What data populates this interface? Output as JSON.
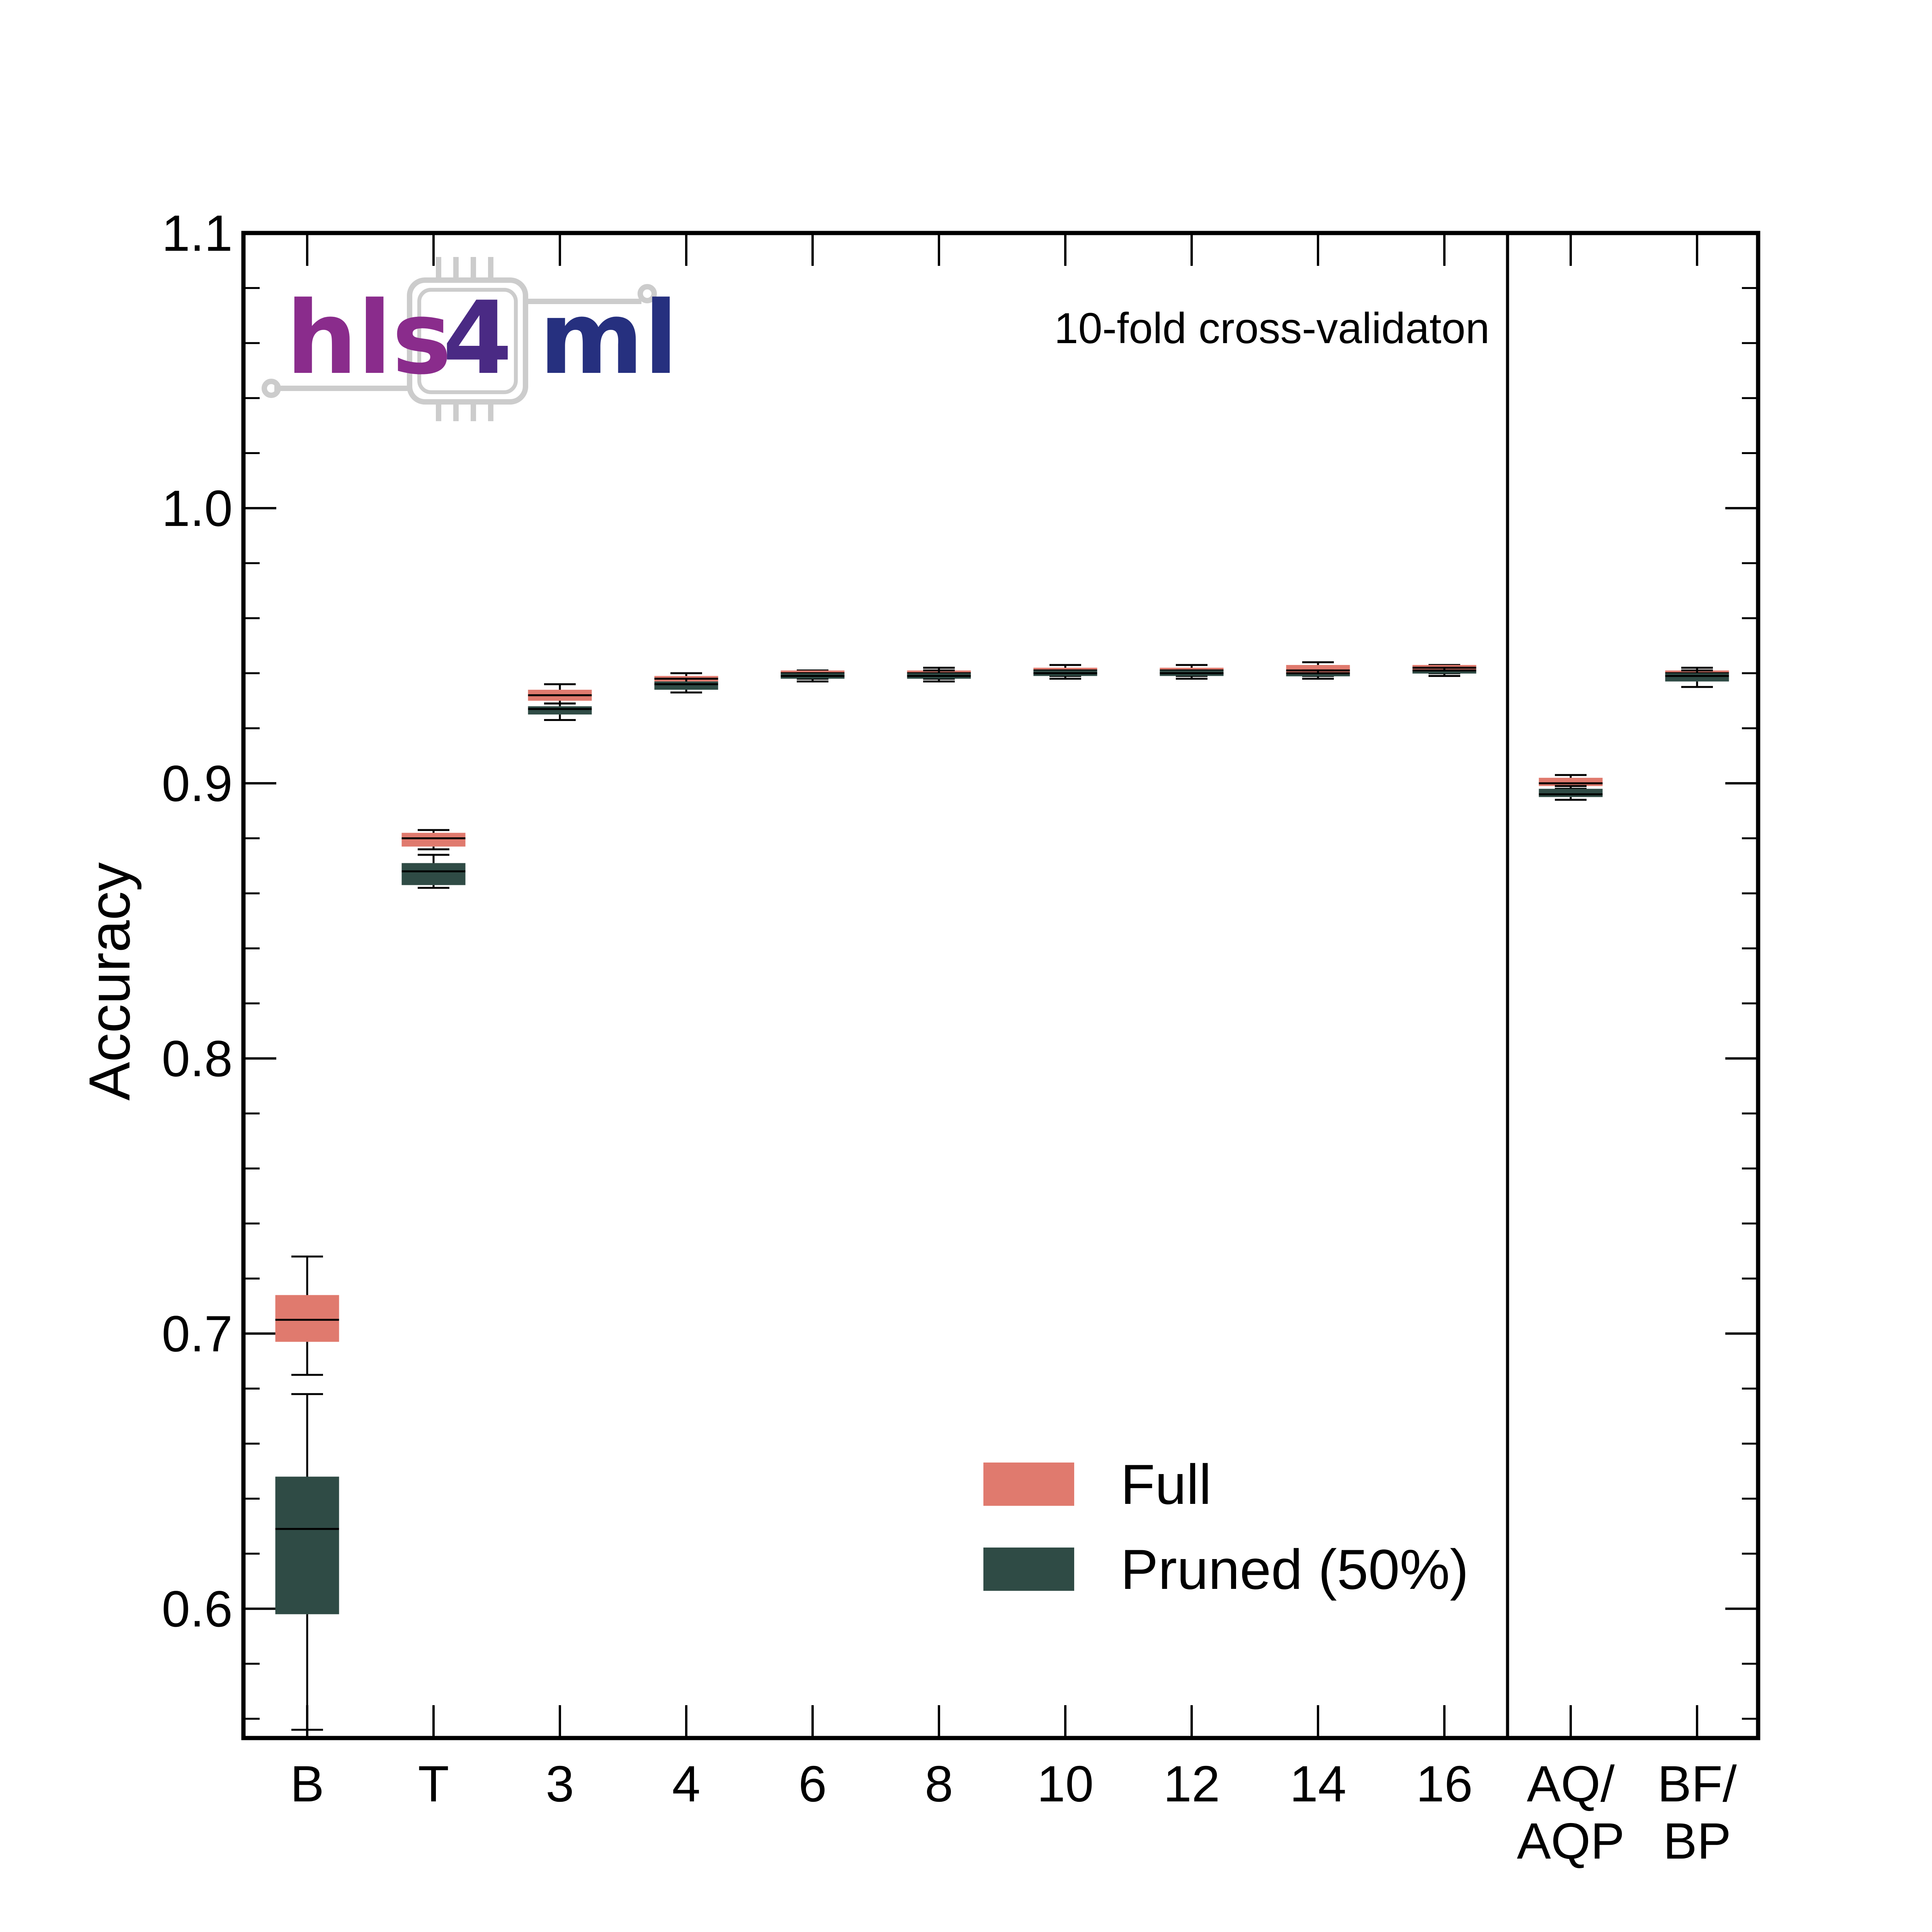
{
  "chart_data": {
    "type": "box",
    "annotation": "10-fold cross-validaton",
    "ylabel": "Accuracy",
    "xlabel": "",
    "ylim": [
      0.553,
      1.1
    ],
    "yticks": [
      "0.6",
      "0.7",
      "0.8",
      "0.9",
      "1.0",
      "1.1"
    ],
    "ytick_values": [
      0.6,
      0.7,
      0.8,
      0.9,
      1.0,
      1.1
    ],
    "categories": [
      {
        "line1": "B",
        "line2": ""
      },
      {
        "line1": "T",
        "line2": ""
      },
      {
        "line1": "3",
        "line2": ""
      },
      {
        "line1": "4",
        "line2": ""
      },
      {
        "line1": "6",
        "line2": ""
      },
      {
        "line1": "8",
        "line2": ""
      },
      {
        "line1": "10",
        "line2": ""
      },
      {
        "line1": "12",
        "line2": ""
      },
      {
        "line1": "14",
        "line2": ""
      },
      {
        "line1": "16",
        "line2": ""
      },
      {
        "line1": "AQ/",
        "line2": "AQP"
      },
      {
        "line1": "BF/",
        "line2": "BP"
      }
    ],
    "separator_after_category": 9,
    "series": [
      {
        "name": "Full",
        "color": "#e07a6e",
        "boxes": [
          {
            "whislo": 0.685,
            "q1": 0.697,
            "med": 0.705,
            "q3": 0.714,
            "whishi": 0.728
          },
          {
            "whislo": 0.876,
            "q1": 0.877,
            "med": 0.88,
            "q3": 0.882,
            "whishi": 0.883
          },
          {
            "whislo": 0.929,
            "q1": 0.93,
            "med": 0.932,
            "q3": 0.934,
            "whishi": 0.936
          },
          {
            "whislo": 0.936,
            "q1": 0.937,
            "med": 0.938,
            "q3": 0.939,
            "whishi": 0.94
          },
          {
            "whislo": 0.938,
            "q1": 0.939,
            "med": 0.94,
            "q3": 0.941,
            "whishi": 0.941
          },
          {
            "whislo": 0.938,
            "q1": 0.939,
            "med": 0.94,
            "q3": 0.941,
            "whishi": 0.942
          },
          {
            "whislo": 0.939,
            "q1": 0.94,
            "med": 0.941,
            "q3": 0.942,
            "whishi": 0.943
          },
          {
            "whislo": 0.939,
            "q1": 0.94,
            "med": 0.941,
            "q3": 0.942,
            "whishi": 0.943
          },
          {
            "whislo": 0.939,
            "q1": 0.94,
            "med": 0.941,
            "q3": 0.943,
            "whishi": 0.944
          },
          {
            "whislo": 0.94,
            "q1": 0.941,
            "med": 0.942,
            "q3": 0.943,
            "whishi": 0.943
          },
          {
            "whislo": 0.898,
            "q1": 0.899,
            "med": 0.9,
            "q3": 0.902,
            "whishi": 0.903
          },
          {
            "whislo": 0.938,
            "q1": 0.939,
            "med": 0.94,
            "q3": 0.941,
            "whishi": 0.942
          }
        ]
      },
      {
        "name": "Pruned (50%)",
        "color": "#2f4b45",
        "boxes": [
          {
            "whislo": 0.556,
            "q1": 0.598,
            "med": 0.629,
            "q3": 0.648,
            "whishi": 0.678
          },
          {
            "whislo": 0.862,
            "q1": 0.863,
            "med": 0.868,
            "q3": 0.871,
            "whishi": 0.874
          },
          {
            "whislo": 0.923,
            "q1": 0.925,
            "med": 0.927,
            "q3": 0.928,
            "whishi": 0.929
          },
          {
            "whislo": 0.933,
            "q1": 0.934,
            "med": 0.936,
            "q3": 0.937,
            "whishi": 0.938
          },
          {
            "whislo": 0.937,
            "q1": 0.938,
            "med": 0.939,
            "q3": 0.94,
            "whishi": 0.94
          },
          {
            "whislo": 0.937,
            "q1": 0.938,
            "med": 0.939,
            "q3": 0.94,
            "whishi": 0.941
          },
          {
            "whislo": 0.938,
            "q1": 0.939,
            "med": 0.94,
            "q3": 0.941,
            "whishi": 0.941
          },
          {
            "whislo": 0.938,
            "q1": 0.939,
            "med": 0.94,
            "q3": 0.941,
            "whishi": 0.941
          },
          {
            "whislo": 0.938,
            "q1": 0.939,
            "med": 0.94,
            "q3": 0.94,
            "whishi": 0.941
          },
          {
            "whislo": 0.939,
            "q1": 0.94,
            "med": 0.941,
            "q3": 0.941,
            "whishi": 0.942
          },
          {
            "whislo": 0.894,
            "q1": 0.895,
            "med": 0.896,
            "q3": 0.898,
            "whishi": 0.899
          },
          {
            "whislo": 0.935,
            "q1": 0.937,
            "med": 0.939,
            "q3": 0.94,
            "whishi": 0.941
          }
        ]
      }
    ],
    "legend": {
      "position": "bottom-right",
      "entries": [
        "Full",
        "Pruned (50%)"
      ]
    },
    "grid": false
  },
  "logo": {
    "text_hls": "hls",
    "text_4": "4",
    "text_ml": "ml",
    "color_hls": "#8a2c8c",
    "color_4": "#4a2a84",
    "color_ml": "#26307f",
    "chip_color": "#cccccc"
  }
}
